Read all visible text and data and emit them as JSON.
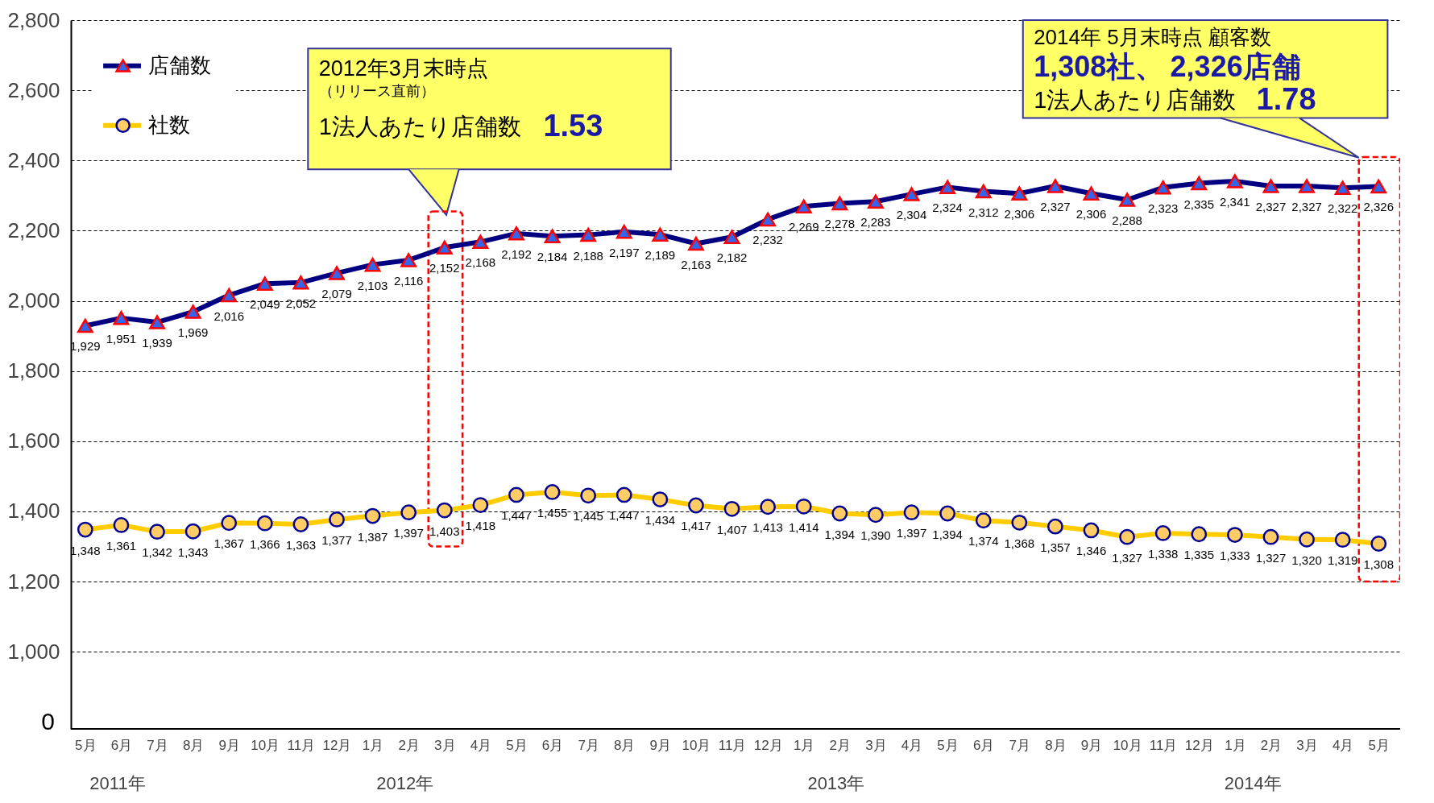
{
  "chart_data": {
    "type": "line",
    "categories": [
      "5月",
      "6月",
      "7月",
      "8月",
      "9月",
      "10月",
      "11月",
      "12月",
      "1月",
      "2月",
      "3月",
      "4月",
      "5月",
      "6月",
      "7月",
      "8月",
      "9月",
      "10月",
      "11月",
      "12月",
      "1月",
      "2月",
      "3月",
      "4月",
      "5月",
      "6月",
      "7月",
      "8月",
      "9月",
      "10月",
      "11月",
      "12月",
      "1月",
      "2月",
      "3月",
      "4月",
      "5月"
    ],
    "series": [
      {
        "name": "店舗数",
        "color": "#000080",
        "marker": "triangle",
        "values": [
          1929,
          1951,
          1939,
          1969,
          2016,
          2049,
          2052,
          2079,
          2103,
          2116,
          2152,
          2168,
          2192,
          2184,
          2188,
          2197,
          2189,
          2163,
          2182,
          2232,
          2269,
          2278,
          2283,
          2304,
          2324,
          2312,
          2306,
          2327,
          2306,
          2288,
          2323,
          2335,
          2341,
          2327,
          2327,
          2322,
          2326
        ],
        "value_labels": [
          "1,929",
          "1,951",
          "1,939",
          "1,969",
          "2,016",
          "2,049",
          "2,052",
          "2,079",
          "2,103",
          "2,116",
          "2,152",
          "2,168",
          "2,192",
          "2,184",
          "2,188",
          "2,197",
          "2,189",
          "2,163",
          "2,182",
          "2,232",
          "2,269",
          "2,278",
          "2,283",
          "2,304",
          "2,324",
          "2,312",
          "2,306",
          "2,327",
          "2,306",
          "2,288",
          "2,323",
          "2,335",
          "2,341",
          "2,327",
          "2,327",
          "2,322",
          "2,326"
        ]
      },
      {
        "name": "社数",
        "color": "#ffcc00",
        "marker": "circle",
        "values": [
          1348,
          1361,
          1342,
          1343,
          1367,
          1366,
          1363,
          1377,
          1387,
          1397,
          1403,
          1418,
          1447,
          1455,
          1445,
          1447,
          1434,
          1417,
          1407,
          1413,
          1414,
          1394,
          1390,
          1397,
          1394,
          1374,
          1368,
          1357,
          1346,
          1327,
          1338,
          1335,
          1333,
          1327,
          1320,
          1319,
          1308
        ],
        "value_labels": [
          "1,348",
          "1,361",
          "1,342",
          "1,343",
          "1,367",
          "1,366",
          "1,363",
          "1,377",
          "1,387",
          "1,397",
          "1,403",
          "1,418",
          "1,447",
          "1,455",
          "1,445",
          "1,447",
          "1,434",
          "1,417",
          "1,407",
          "1,413",
          "1,414",
          "1,394",
          "1,390",
          "1,397",
          "1,394",
          "1,374",
          "1,368",
          "1,357",
          "1,346",
          "1,327",
          "1,338",
          "1,335",
          "1,333",
          "1,327",
          "1,320",
          "1,319",
          "1,308"
        ]
      }
    ],
    "ylim": [
      780,
      2800
    ],
    "yticks": [
      {
        "value": 1000,
        "label": "1,000"
      },
      {
        "value": 1200,
        "label": "1,200"
      },
      {
        "value": 1400,
        "label": "1,400"
      },
      {
        "value": 1600,
        "label": "1,600"
      },
      {
        "value": 1800,
        "label": "1,800"
      },
      {
        "value": 2000,
        "label": "2,000"
      },
      {
        "value": 2200,
        "label": "2,200"
      },
      {
        "value": 2400,
        "label": "2,400"
      },
      {
        "value": 2600,
        "label": "2,600"
      },
      {
        "value": 2800,
        "label": "2,800"
      }
    ],
    "grid": "y",
    "legend": "top left",
    "annotations": [
      "2012年3月末時点",
      "（リリース直前）",
      "1法人あたり店舗数",
      "1.53",
      "2014年 5月末時点 顧客数",
      "1,308社、",
      "2,326店舗",
      "1法人あたり店舗数",
      "1.78",
      "2011年",
      "2012年",
      "2013年",
      "2014年",
      "0"
    ]
  }
}
